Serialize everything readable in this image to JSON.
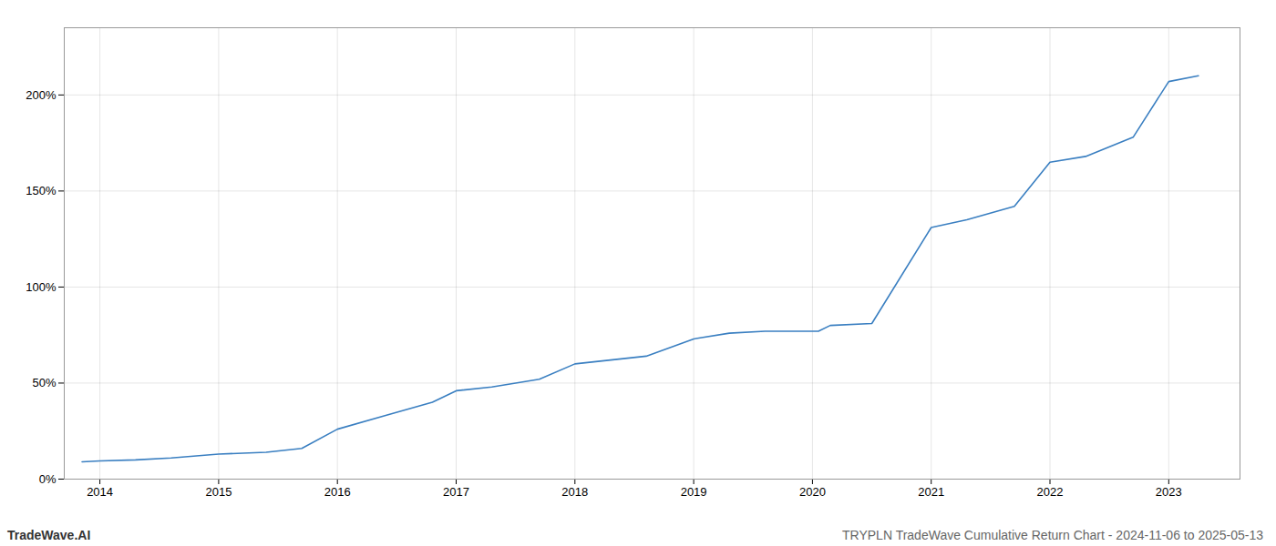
{
  "chart_data": {
    "type": "line",
    "title": "TRYPLN TradeWave Cumulative Return Chart - 2024-11-06 to 2025-05-13",
    "annotations": [
      "TradeWave.AI"
    ],
    "x": [
      2013.85,
      2014.0,
      2014.3,
      2014.6,
      2015.0,
      2015.4,
      2015.7,
      2016.0,
      2016.4,
      2016.8,
      2017.0,
      2017.3,
      2017.7,
      2018.0,
      2018.3,
      2018.6,
      2019.0,
      2019.3,
      2019.6,
      2019.85,
      2020.05,
      2020.15,
      2020.5,
      2021.0,
      2021.3,
      2021.7,
      2022.0,
      2022.3,
      2022.7,
      2023.0,
      2023.25
    ],
    "values": [
      9,
      9.5,
      10,
      11,
      13,
      14,
      16,
      26,
      33,
      40,
      46,
      48,
      52,
      60,
      62,
      64,
      73,
      76,
      77,
      77,
      77,
      80,
      81,
      131,
      135,
      142,
      165,
      168,
      178,
      207,
      210
    ],
    "color": "#3a7fc1",
    "xlim": [
      2013.7,
      2023.6
    ],
    "xticks": [
      2014,
      2015,
      2016,
      2017,
      2018,
      2019,
      2020,
      2021,
      2022,
      2023
    ],
    "ylim": [
      0,
      235
    ],
    "yticks": [
      {
        "value": 0,
        "label": "0%"
      },
      {
        "value": 50,
        "label": "50%"
      },
      {
        "value": 100,
        "label": "100%"
      },
      {
        "value": 150,
        "label": "150%"
      },
      {
        "value": 200,
        "label": "200%"
      }
    ],
    "grid": true
  }
}
